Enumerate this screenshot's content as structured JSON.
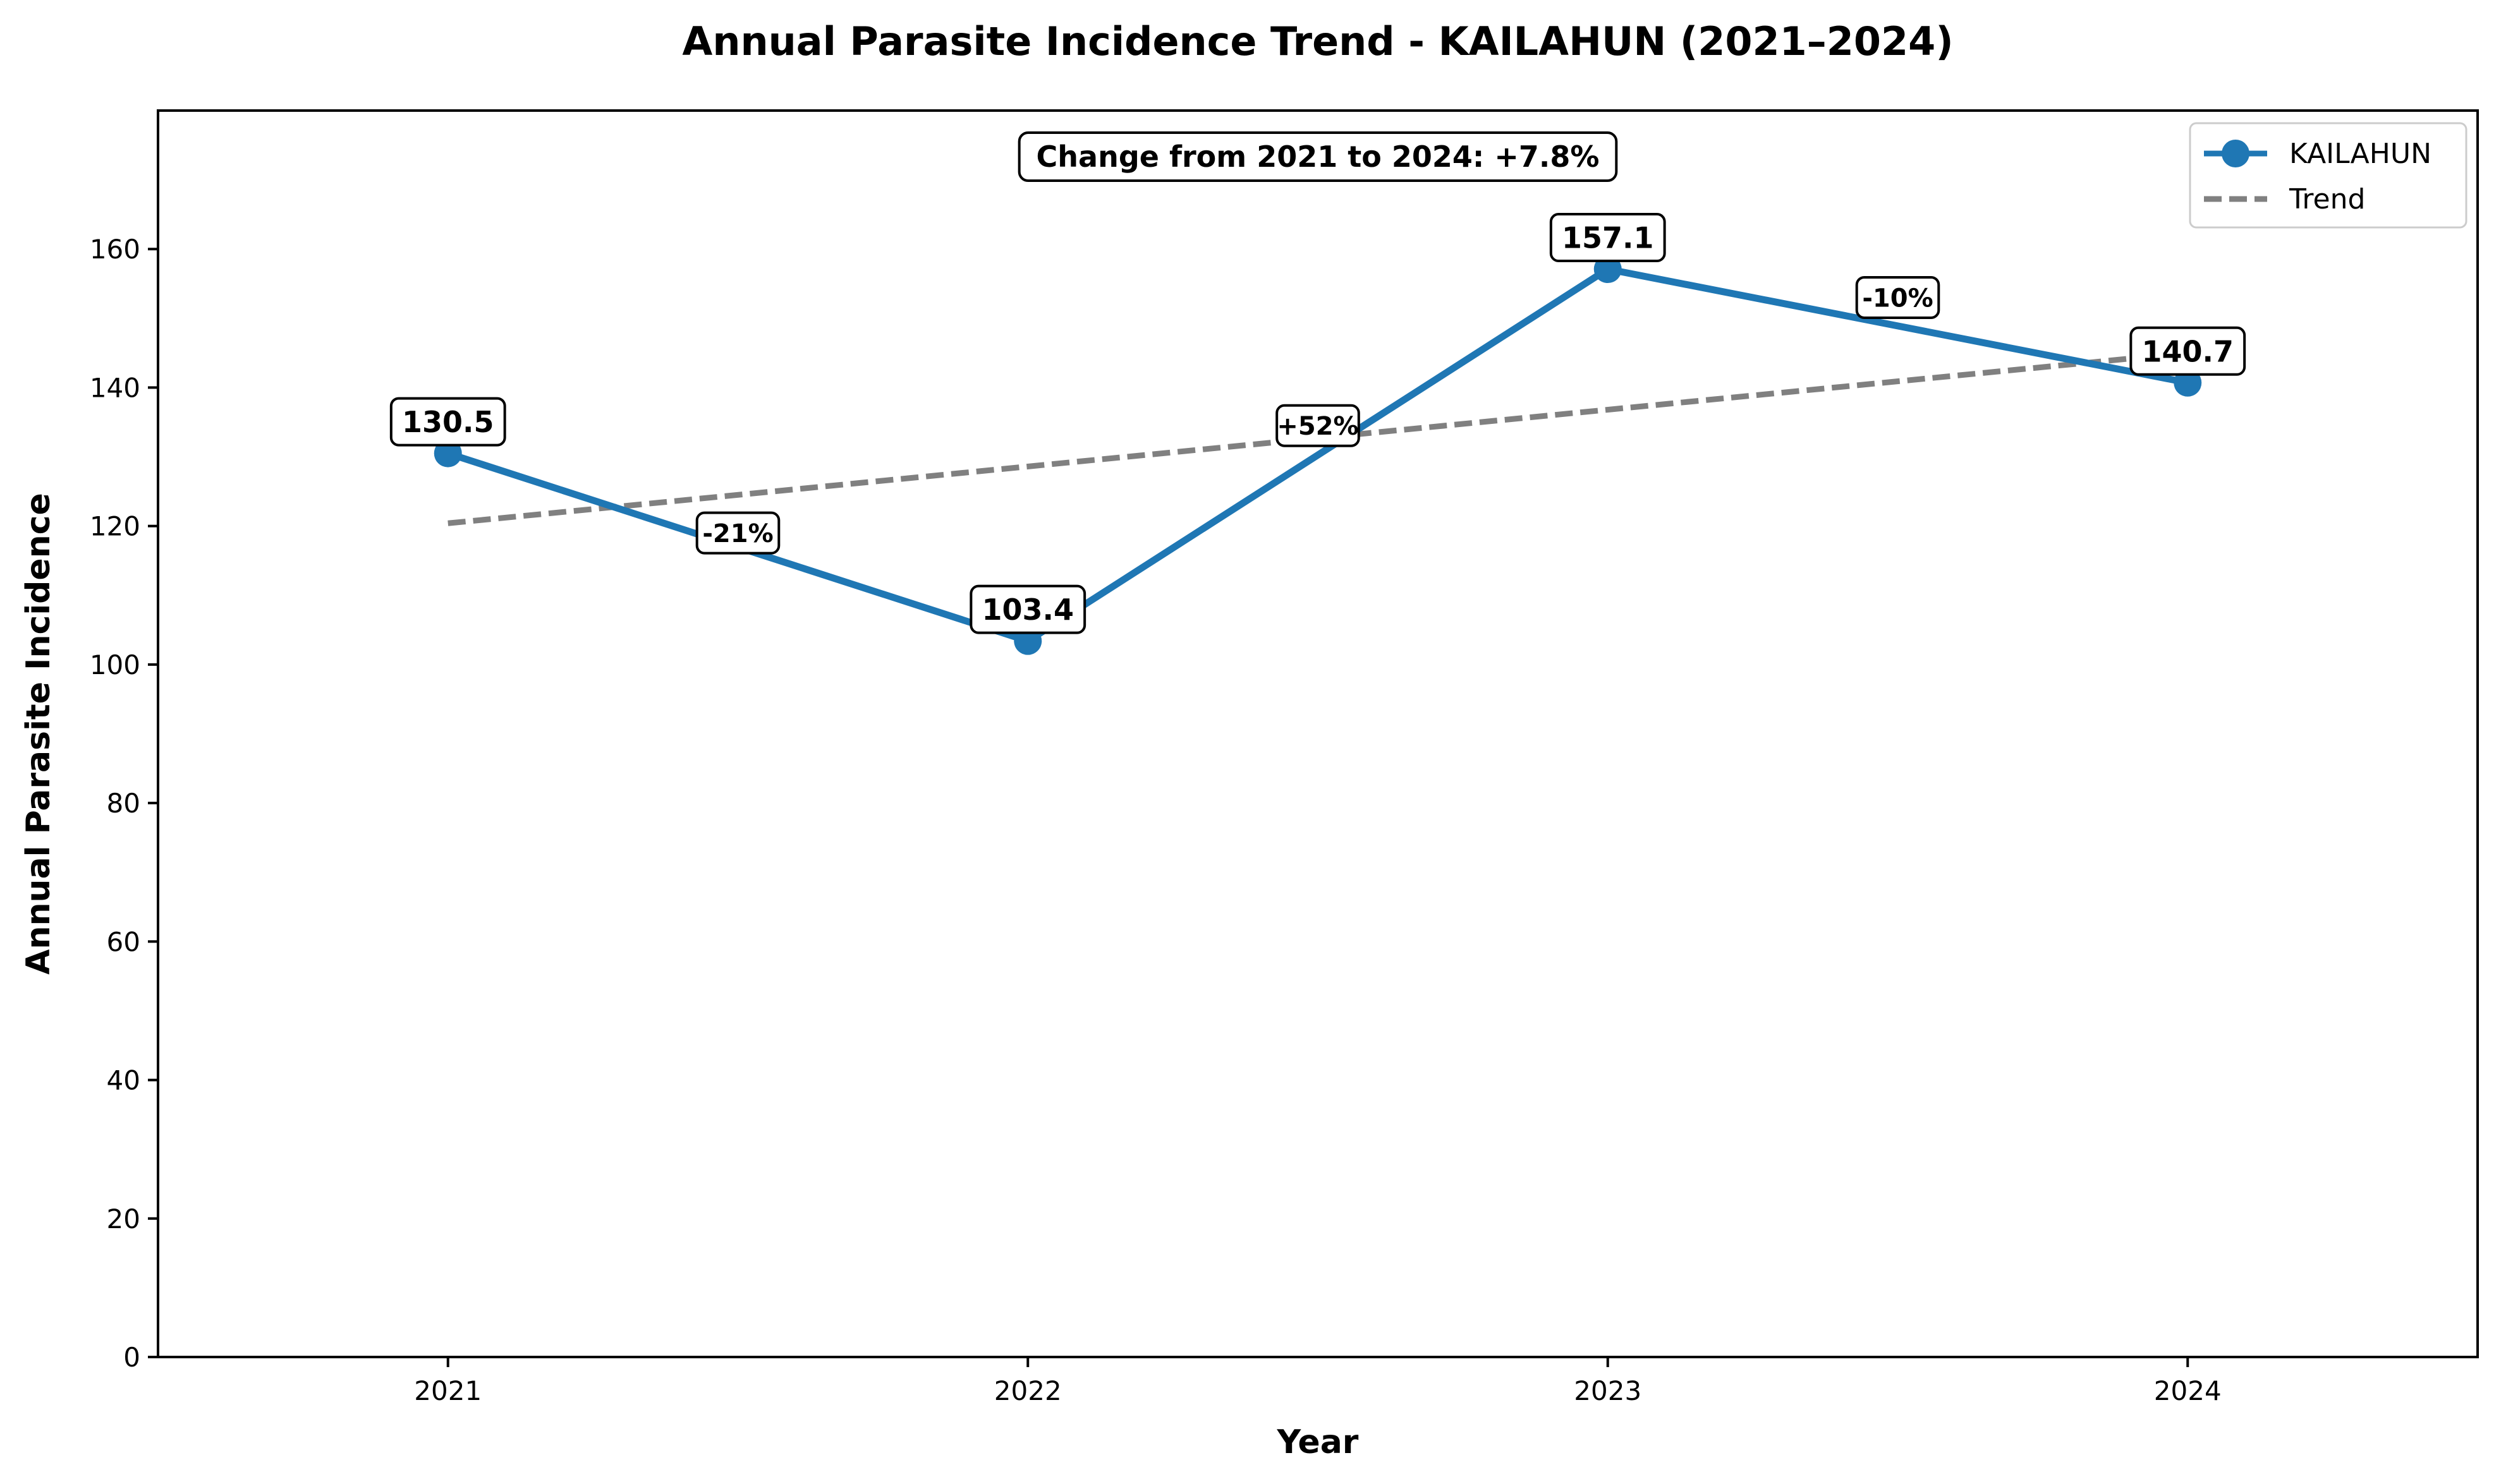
{
  "chart_data": {
    "type": "line",
    "title": "Annual Parasite Incidence Trend - KAILAHUN (2021–2024)",
    "xlabel": "Year",
    "ylabel": "Annual Parasite Incidence",
    "categories": [
      "2021",
      "2022",
      "2023",
      "2024"
    ],
    "x": [
      2021,
      2022,
      2023,
      2024
    ],
    "xlim": [
      2020.5,
      2024.5
    ],
    "ylim": [
      0,
      180
    ],
    "yticks": [
      0,
      20,
      40,
      60,
      80,
      100,
      120,
      140,
      160
    ],
    "series": [
      {
        "name": "KAILAHUN",
        "values": [
          130.5,
          103.4,
          157.1,
          140.7
        ],
        "labels": [
          "130.5",
          "103.4",
          "157.1",
          "140.7"
        ],
        "color": "#1f77b4",
        "marker": "circle"
      },
      {
        "name": "Trend",
        "style": "dashed",
        "color": "#808080",
        "x": [
          2021,
          2024
        ],
        "values": [
          120.4,
          145.0
        ]
      }
    ],
    "segment_changes": [
      {
        "x": 2021.5,
        "y": 119.0,
        "label": "-21%"
      },
      {
        "x": 2022.5,
        "y": 134.5,
        "label": "+52%"
      },
      {
        "x": 2023.5,
        "y": 153.0,
        "label": "-10%"
      }
    ],
    "annotation": "Change from 2021 to 2024: +7.8%",
    "grid": false,
    "legend_position": "top-right"
  }
}
